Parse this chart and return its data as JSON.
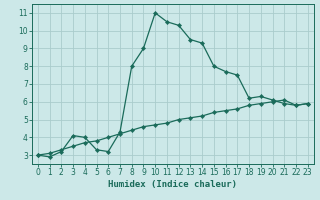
{
  "xlabel": "Humidex (Indice chaleur)",
  "bg_color": "#cce8e8",
  "grid_color": "#aacccc",
  "line_color": "#1a6b5a",
  "xlim": [
    -0.5,
    23.5
  ],
  "ylim": [
    2.5,
    11.5
  ],
  "xticks": [
    0,
    1,
    2,
    3,
    4,
    5,
    6,
    7,
    8,
    9,
    10,
    11,
    12,
    13,
    14,
    15,
    16,
    17,
    18,
    19,
    20,
    21,
    22,
    23
  ],
  "yticks": [
    3,
    4,
    5,
    6,
    7,
    8,
    9,
    10,
    11
  ],
  "line1_x": [
    0,
    1,
    2,
    3,
    4,
    5,
    6,
    7,
    8,
    9,
    10,
    11,
    12,
    13,
    14,
    15,
    16,
    17,
    18,
    19,
    20,
    21,
    22,
    23
  ],
  "line1_y": [
    3.0,
    2.9,
    3.2,
    4.1,
    4.0,
    3.3,
    3.2,
    4.3,
    8.0,
    9.0,
    11.0,
    10.5,
    10.3,
    9.5,
    9.3,
    8.0,
    7.7,
    7.5,
    6.2,
    6.3,
    6.1,
    5.9,
    5.8,
    5.9
  ],
  "line2_x": [
    0,
    1,
    2,
    3,
    4,
    5,
    6,
    7,
    8,
    9,
    10,
    11,
    12,
    13,
    14,
    15,
    16,
    17,
    18,
    19,
    20,
    21,
    22,
    23
  ],
  "line2_y": [
    3.0,
    3.1,
    3.3,
    3.5,
    3.7,
    3.8,
    4.0,
    4.2,
    4.4,
    4.6,
    4.7,
    4.8,
    5.0,
    5.1,
    5.2,
    5.4,
    5.5,
    5.6,
    5.8,
    5.9,
    6.0,
    6.1,
    5.8,
    5.9
  ]
}
